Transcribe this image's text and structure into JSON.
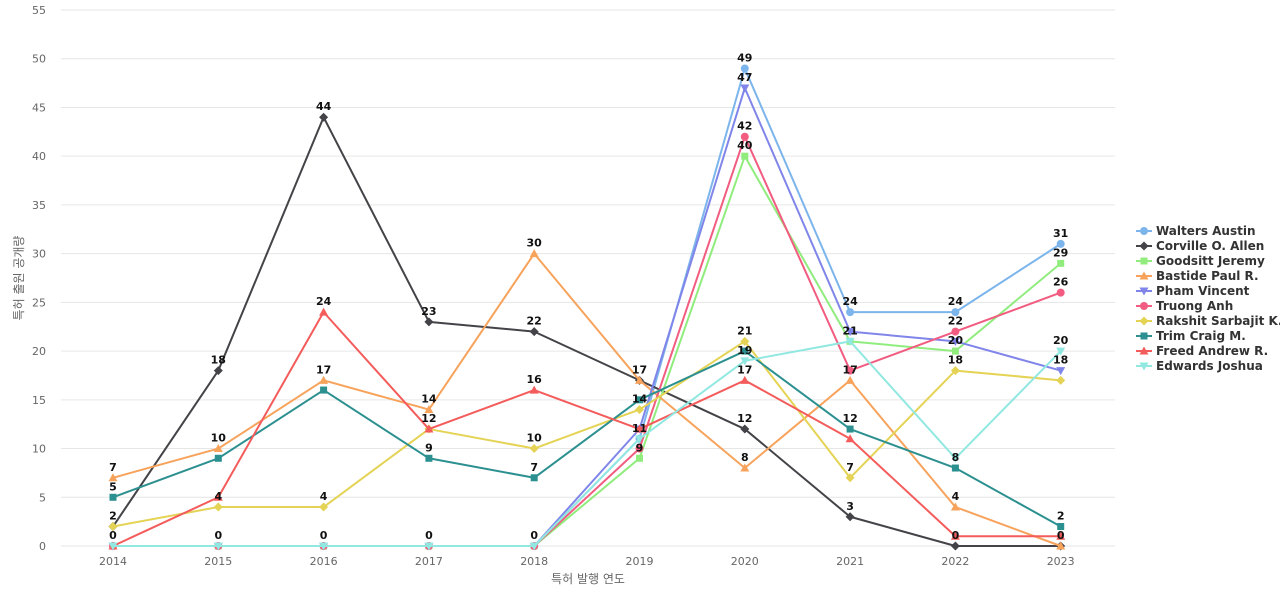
{
  "chart_data": {
    "type": "line",
    "xlabel": "특허 발행 연도",
    "ylabel": "특허 출원 공개량",
    "ylim": [
      0,
      55
    ],
    "yticks": [
      0,
      5,
      10,
      15,
      20,
      25,
      30,
      35,
      40,
      45,
      50,
      55
    ],
    "categories": [
      "2014",
      "2015",
      "2016",
      "2017",
      "2018",
      "2019",
      "2020",
      "2021",
      "2022",
      "2023"
    ],
    "grid": true,
    "legend_position": "right",
    "series": [
      {
        "name": "Walters Austin",
        "color": "#7cb5ec",
        "marker": "circle",
        "values": [
          0,
          0,
          0,
          0,
          0,
          11,
          49,
          24,
          24,
          31
        ]
      },
      {
        "name": "Corville O. Allen",
        "color": "#434348",
        "marker": "diamond",
        "values": [
          2,
          18,
          44,
          23,
          22,
          17,
          12,
          3,
          0,
          0
        ]
      },
      {
        "name": "Goodsitt Jeremy",
        "color": "#90ed7d",
        "marker": "square",
        "values": [
          0,
          0,
          0,
          0,
          0,
          9,
          40,
          21,
          20,
          29
        ]
      },
      {
        "name": "Bastide Paul R.",
        "color": "#f7a35c",
        "marker": "triangle",
        "values": [
          7,
          10,
          17,
          14,
          30,
          17,
          8,
          17,
          4,
          0
        ]
      },
      {
        "name": "Pham Vincent",
        "color": "#8085e9",
        "marker": "triangle-down",
        "values": [
          0,
          0,
          0,
          0,
          0,
          12,
          47,
          22,
          21,
          18
        ]
      },
      {
        "name": "Truong Anh",
        "color": "#f15c80",
        "marker": "circle",
        "values": [
          0,
          0,
          0,
          0,
          0,
          10,
          42,
          18,
          22,
          26
        ]
      },
      {
        "name": "Rakshit Sarbajit K.",
        "color": "#e4d354",
        "marker": "diamond",
        "values": [
          2,
          4,
          4,
          12,
          10,
          14,
          21,
          7,
          18,
          17
        ]
      },
      {
        "name": "Trim Craig M.",
        "color": "#2b908f",
        "marker": "square",
        "values": [
          5,
          9,
          16,
          9,
          7,
          15,
          20,
          12,
          8,
          2
        ]
      },
      {
        "name": "Freed Andrew R.",
        "color": "#f45b5b",
        "marker": "triangle",
        "values": [
          0,
          5,
          24,
          12,
          16,
          12,
          17,
          11,
          1,
          1
        ]
      },
      {
        "name": "Edwards Joshua",
        "color": "#91e8e1",
        "marker": "triangle-down",
        "values": [
          0,
          0,
          0,
          0,
          0,
          11,
          19,
          21,
          9,
          20
        ]
      }
    ],
    "data_labels": [
      {
        "x": "2014",
        "text": "7",
        "series": "Bastide Paul R."
      },
      {
        "x": "2014",
        "text": "5",
        "series": "Trim Craig M."
      },
      {
        "x": "2014",
        "text": "2",
        "series": "Rakshit Sarbajit K."
      },
      {
        "x": "2014",
        "text": "0",
        "series": "Walters Austin"
      },
      {
        "x": "2015",
        "text": "18",
        "series": "Corville O. Allen"
      },
      {
        "x": "2015",
        "text": "10",
        "series": "Bastide Paul R."
      },
      {
        "x": "2015",
        "text": "4",
        "series": "Rakshit Sarbajit K."
      },
      {
        "x": "2015",
        "text": "0",
        "series": "Walters Austin"
      },
      {
        "x": "2016",
        "text": "44",
        "series": "Corville O. Allen"
      },
      {
        "x": "2016",
        "text": "24",
        "series": "Freed Andrew R."
      },
      {
        "x": "2016",
        "text": "17",
        "series": "Bastide Paul R."
      },
      {
        "x": "2016",
        "text": "4",
        "series": "Rakshit Sarbajit K."
      },
      {
        "x": "2016",
        "text": "0",
        "series": "Walters Austin"
      },
      {
        "x": "2017",
        "text": "23",
        "series": "Corville O. Allen"
      },
      {
        "x": "2017",
        "text": "14",
        "series": "Bastide Paul R."
      },
      {
        "x": "2017",
        "text": "12",
        "series": "Rakshit Sarbajit K."
      },
      {
        "x": "2017",
        "text": "9",
        "series": "Trim Craig M."
      },
      {
        "x": "2017",
        "text": "0",
        "series": "Walters Austin"
      },
      {
        "x": "2018",
        "text": "30",
        "series": "Bastide Paul R."
      },
      {
        "x": "2018",
        "text": "22",
        "series": "Corville O. Allen"
      },
      {
        "x": "2018",
        "text": "16",
        "series": "Freed Andrew R."
      },
      {
        "x": "2018",
        "text": "10",
        "series": "Rakshit Sarbajit K."
      },
      {
        "x": "2018",
        "text": "7",
        "series": "Trim Craig M."
      },
      {
        "x": "2018",
        "text": "0",
        "series": "Walters Austin"
      },
      {
        "x": "2019",
        "text": "17",
        "series": "Bastide Paul R."
      },
      {
        "x": "2019",
        "text": "14",
        "series": "Rakshit Sarbajit K."
      },
      {
        "x": "2019",
        "text": "11",
        "series": "Walters Austin"
      },
      {
        "x": "2019",
        "text": "9",
        "series": "Goodsitt Jeremy"
      },
      {
        "x": "2020",
        "text": "49",
        "series": "Walters Austin"
      },
      {
        "x": "2020",
        "text": "47",
        "series": "Pham Vincent"
      },
      {
        "x": "2020",
        "text": "42",
        "series": "Truong Anh"
      },
      {
        "x": "2020",
        "text": "40",
        "series": "Goodsitt Jeremy"
      },
      {
        "x": "2020",
        "text": "21",
        "series": "Rakshit Sarbajit K."
      },
      {
        "x": "2020",
        "text": "19",
        "series": "Edwards Joshua"
      },
      {
        "x": "2020",
        "text": "17",
        "series": "Freed Andrew R."
      },
      {
        "x": "2020",
        "text": "12",
        "series": "Corville O. Allen"
      },
      {
        "x": "2020",
        "text": "8",
        "series": "Bastide Paul R."
      },
      {
        "x": "2021",
        "text": "24",
        "series": "Walters Austin"
      },
      {
        "x": "2021",
        "text": "21",
        "series": "Edwards Joshua"
      },
      {
        "x": "2021",
        "text": "17",
        "series": "Bastide Paul R."
      },
      {
        "x": "2021",
        "text": "12",
        "series": "Trim Craig M."
      },
      {
        "x": "2021",
        "text": "7",
        "series": "Rakshit Sarbajit K."
      },
      {
        "x": "2021",
        "text": "3",
        "series": "Corville O. Allen"
      },
      {
        "x": "2022",
        "text": "24",
        "series": "Walters Austin"
      },
      {
        "x": "2022",
        "text": "22",
        "series": "Truong Anh"
      },
      {
        "x": "2022",
        "text": "20",
        "series": "Goodsitt Jeremy"
      },
      {
        "x": "2022",
        "text": "18",
        "series": "Rakshit Sarbajit K."
      },
      {
        "x": "2022",
        "text": "8",
        "series": "Trim Craig M."
      },
      {
        "x": "2022",
        "text": "4",
        "series": "Bastide Paul R."
      },
      {
        "x": "2022",
        "text": "0",
        "series": "Corville O. Allen"
      },
      {
        "x": "2023",
        "text": "31",
        "series": "Walters Austin"
      },
      {
        "x": "2023",
        "text": "29",
        "series": "Goodsitt Jeremy"
      },
      {
        "x": "2023",
        "text": "26",
        "series": "Truong Anh"
      },
      {
        "x": "2023",
        "text": "20",
        "series": "Edwards Joshua"
      },
      {
        "x": "2023",
        "text": "18",
        "series": "Pham Vincent"
      },
      {
        "x": "2023",
        "text": "2",
        "series": "Trim Craig M."
      },
      {
        "x": "2023",
        "text": "0",
        "series": "Corville O. Allen"
      }
    ]
  }
}
